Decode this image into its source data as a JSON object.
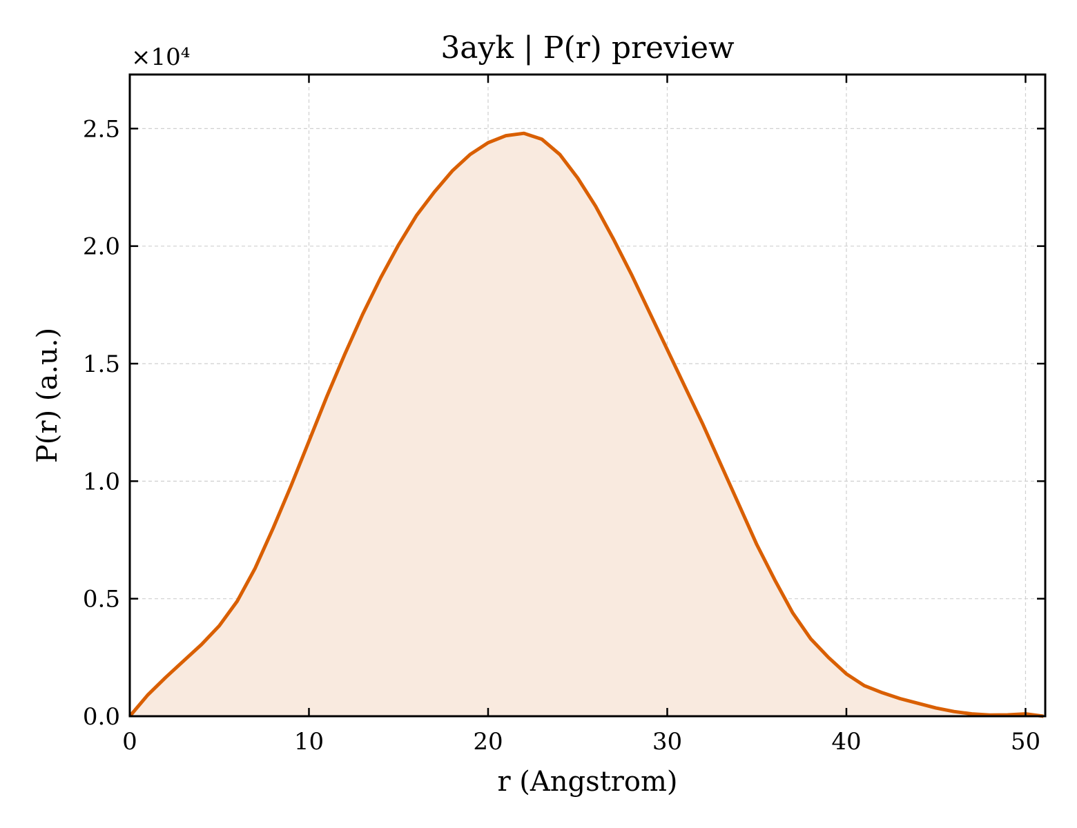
{
  "chart_data": {
    "type": "area",
    "title": "3ayk | P(r) preview",
    "xlabel": "r (Angstrom)",
    "ylabel": "P(r) (a.u.)",
    "y_offset_label": "×10⁴",
    "y_scale": 10000,
    "xlim": [
      0,
      51.1
    ],
    "ylim": [
      0,
      27300
    ],
    "x_ticks": [
      0,
      10,
      20,
      30,
      40,
      50
    ],
    "x_tick_labels": [
      "0",
      "10",
      "20",
      "30",
      "40",
      "50"
    ],
    "y_ticks": [
      0,
      5000,
      10000,
      15000,
      20000,
      25000
    ],
    "y_tick_labels": [
      "0.0",
      "0.5",
      "1.0",
      "1.5",
      "2.0",
      "2.5"
    ],
    "grid": true,
    "line_color": "#d95f02",
    "fill_color": "#f9eadf",
    "series": [
      {
        "x": [
          0,
          1,
          2,
          3,
          4,
          5,
          6,
          7,
          8,
          9,
          10,
          11,
          12,
          13,
          14,
          15,
          16,
          17,
          18,
          19,
          20,
          21,
          22,
          23,
          24,
          25,
          26,
          27,
          28,
          29,
          30,
          31,
          32,
          33,
          34,
          35,
          36,
          37,
          38,
          39,
          40,
          41,
          42,
          43,
          44,
          45,
          46,
          47,
          48,
          49,
          50,
          51
        ],
        "y": [
          0,
          900,
          1650,
          2350,
          3050,
          3850,
          4900,
          6300,
          8000,
          9800,
          11700,
          13600,
          15400,
          17100,
          18650,
          20050,
          21300,
          22300,
          23200,
          23900,
          24400,
          24700,
          24800,
          24550,
          23900,
          22900,
          21700,
          20300,
          18800,
          17200,
          15600,
          14000,
          12400,
          10700,
          9000,
          7300,
          5800,
          4400,
          3300,
          2500,
          1800,
          1300,
          1000,
          750,
          550,
          350,
          200,
          100,
          50,
          60,
          100,
          0
        ]
      }
    ]
  }
}
